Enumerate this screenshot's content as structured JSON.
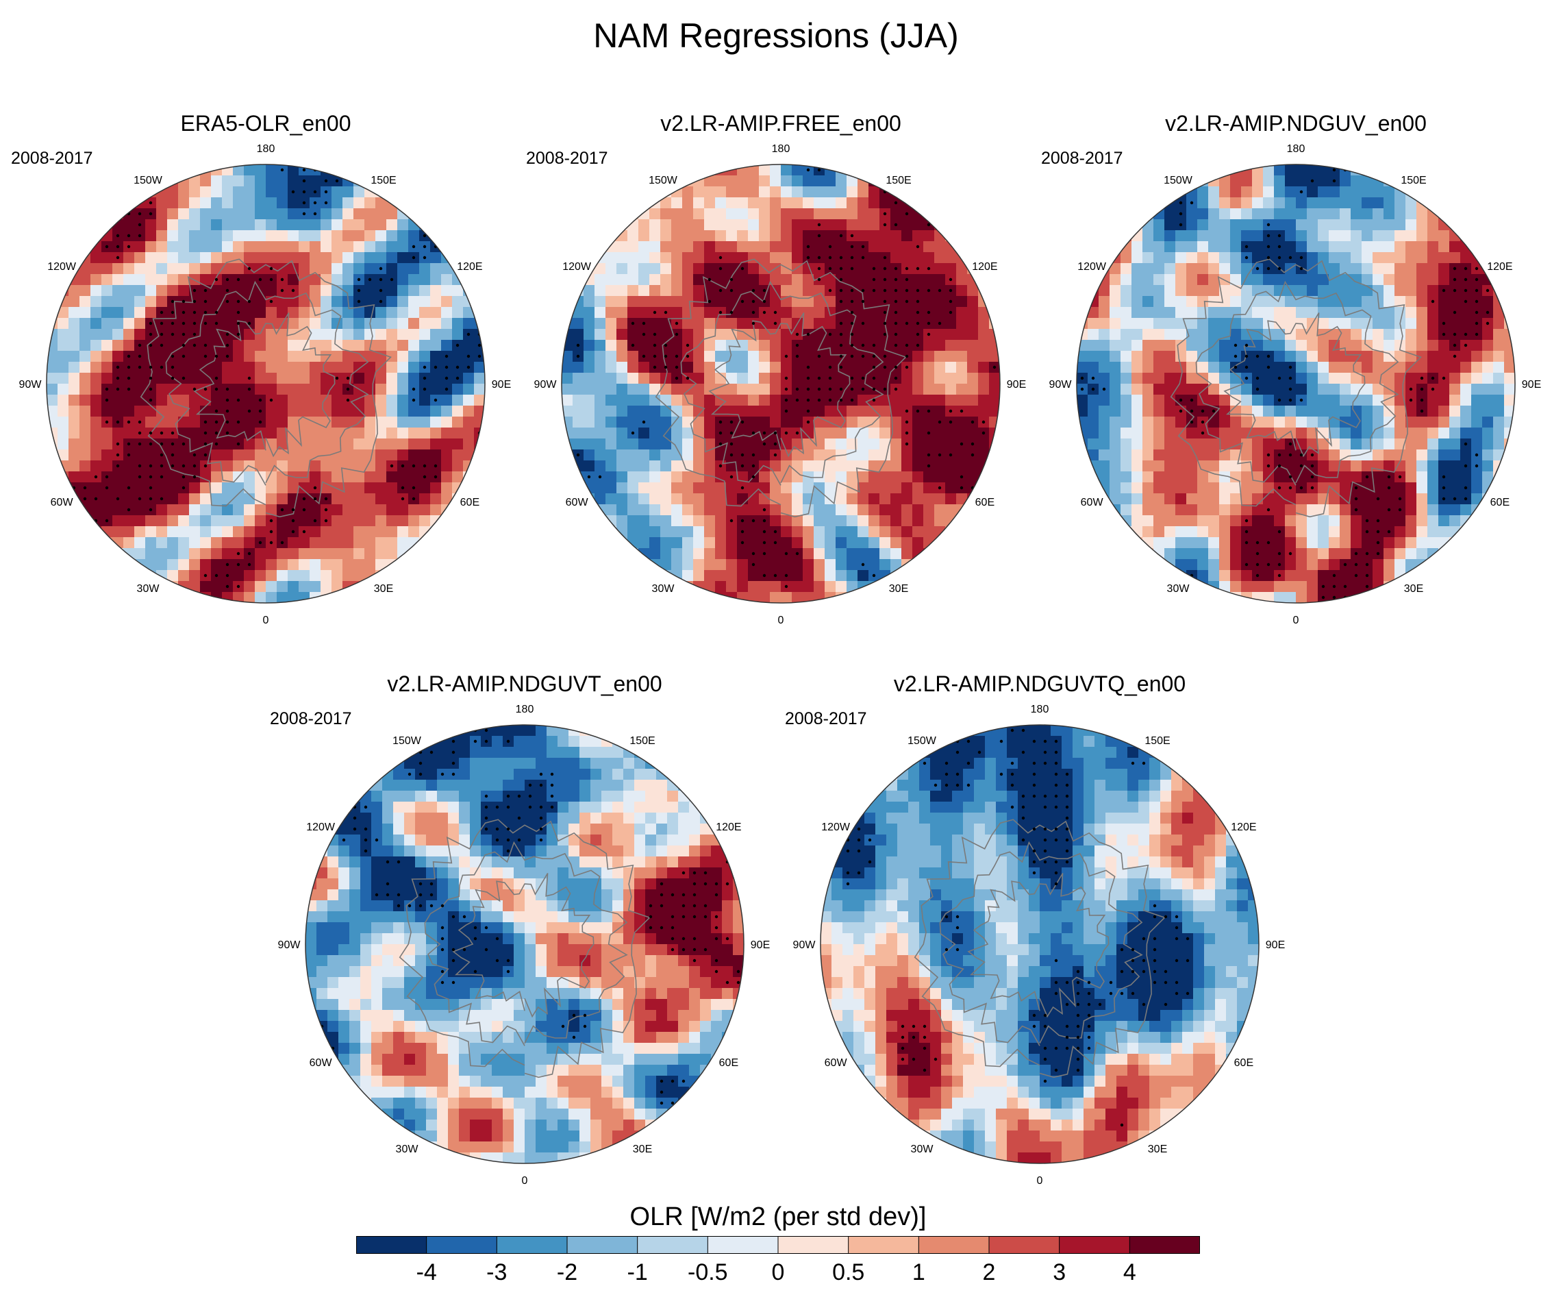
{
  "title": "NAM Regressions (JJA)",
  "period": "2008-2017",
  "colors": {
    "levels": [
      "#08306b",
      "#2166ac",
      "#4393c3",
      "#7fb5d8",
      "#b6d4e8",
      "#e3ecf5",
      "#fbe3d8",
      "#f5b89c",
      "#e58a6f",
      "#cc4c48",
      "#a6152b",
      "#67001f"
    ],
    "coast": "#7a7a7a",
    "stipple": "#000000"
  },
  "longitude_labels": [
    "180",
    "150E",
    "120E",
    "90E",
    "60E",
    "30E",
    "0",
    "30W",
    "60W",
    "90W",
    "120W",
    "150W"
  ],
  "panels": [
    {
      "id": "era5",
      "title": "ERA5-OLR_en00",
      "seed": 11,
      "bias": 0.2,
      "features": [
        [
          170,
          0.9,
          -3.5,
          0.35
        ],
        [
          260,
          0.45,
          3.5,
          0.3
        ],
        [
          80,
          0.45,
          3.2,
          0.3
        ],
        [
          15,
          0.55,
          2.6,
          0.35
        ],
        [
          275,
          0.75,
          -2.8,
          0.25
        ],
        [
          95,
          0.9,
          -3.5,
          0.25
        ],
        [
          200,
          0.55,
          2.2,
          0.3
        ],
        [
          300,
          0.8,
          2.4,
          0.3
        ]
      ]
    },
    {
      "id": "free",
      "title": "v2.LR-AMIP.FREE_en00",
      "seed": 23,
      "bias": 0.1,
      "features": [
        [
          175,
          0.9,
          -3.5,
          0.3
        ],
        [
          175,
          0.65,
          3.5,
          0.3
        ],
        [
          120,
          0.6,
          3.2,
          0.35
        ],
        [
          65,
          0.85,
          3.5,
          0.3
        ],
        [
          20,
          0.55,
          -3.3,
          0.3
        ],
        [
          340,
          0.4,
          3,
          0.4
        ],
        [
          285,
          0.75,
          -3.2,
          0.3
        ],
        [
          250,
          0.85,
          2.8,
          0.3
        ]
      ]
    },
    {
      "id": "ndguv",
      "title": "v2.LR-AMIP.NDGUV_en00",
      "seed": 37,
      "bias": 0,
      "features": [
        [
          170,
          0.9,
          -3.5,
          0.3
        ],
        [
          110,
          0.8,
          3.2,
          0.3
        ],
        [
          80,
          0.95,
          -3.5,
          0.25
        ],
        [
          270,
          0.9,
          -3.5,
          0.25
        ],
        [
          300,
          0.8,
          3,
          0.3
        ],
        [
          0,
          0.1,
          -3,
          0.3
        ],
        [
          15,
          0.65,
          2.5,
          0.35
        ],
        [
          60,
          0.45,
          2.6,
          0.3
        ]
      ]
    },
    {
      "id": "ndguvt",
      "title": "v2.LR-AMIP.NDGUVT_en00",
      "seed": 53,
      "bias": -0.2,
      "features": [
        [
          175,
          0.9,
          -3.5,
          0.3
        ],
        [
          225,
          0.7,
          -3,
          0.3
        ],
        [
          0,
          0.15,
          -3.2,
          0.35
        ],
        [
          275,
          0.85,
          -3.5,
          0.3
        ],
        [
          300,
          0.75,
          3.2,
          0.3
        ],
        [
          20,
          0.9,
          3.5,
          0.25
        ],
        [
          100,
          0.75,
          3,
          0.3
        ],
        [
          40,
          0.55,
          -2.5,
          0.35
        ],
        [
          80,
          0.35,
          2.5,
          0.4
        ]
      ]
    },
    {
      "id": "ndguvtq",
      "title": "v2.LR-AMIP.NDGUVTQ_en00",
      "seed": 71,
      "bias": -0.2,
      "features": [
        [
          175,
          0.9,
          -3.5,
          0.3
        ],
        [
          225,
          0.7,
          -3,
          0.3
        ],
        [
          0,
          0.15,
          -3.2,
          0.35
        ],
        [
          275,
          0.85,
          -3.5,
          0.3
        ],
        [
          300,
          0.75,
          3,
          0.3
        ],
        [
          120,
          0.7,
          3.5,
          0.3
        ],
        [
          20,
          0.85,
          2.8,
          0.25
        ],
        [
          50,
          0.55,
          -2.6,
          0.35
        ]
      ]
    }
  ],
  "colorbar": {
    "title": "OLR [W/m2 (per std dev)]",
    "ticks": [
      "-4",
      "-3",
      "-2",
      "-1",
      "-0.5",
      "0",
      "0.5",
      "1",
      "2",
      "3",
      "4"
    ]
  }
}
